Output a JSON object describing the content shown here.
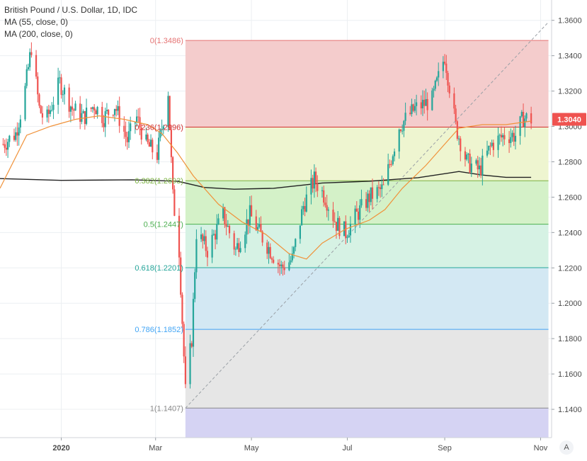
{
  "legend": {
    "title": "British Pound / U.S. Dollar, 1D, IDC",
    "ma55": "MA (55, close, 0)",
    "ma200": "MA (200, close, 0)"
  },
  "auto_button": "A",
  "price_label": "1.3040",
  "chart_data": {
    "type": "candlestick",
    "symbol": "British Pound / U.S. Dollar",
    "interval": "1D",
    "source": "IDC",
    "ylim": [
      1.124,
      1.3715
    ],
    "y_ticks": [
      "1.3600",
      "1.3400",
      "1.3200",
      "1.3000",
      "1.2800",
      "1.2600",
      "1.2400",
      "1.2200",
      "1.2000",
      "1.1800",
      "1.1600",
      "1.1400"
    ],
    "x_ticks": [
      {
        "label": "2020",
        "date": "2020-01-01"
      },
      {
        "label": "Mar",
        "date": "2020-03-01"
      },
      {
        "label": "May",
        "date": "2020-05-01"
      },
      {
        "label": "Jul",
        "date": "2020-07-01"
      },
      {
        "label": "Sep",
        "date": "2020-09-01"
      },
      {
        "label": "Nov",
        "date": "2020-11-01"
      }
    ],
    "x_range": [
      "2019-11-23",
      "2020-11-08"
    ],
    "last_close": 1.304,
    "fibonacci": {
      "start_date": "2020-03-20",
      "end_date": "2020-11-06",
      "levels": [
        {
          "ratio": "0",
          "price": 1.3486,
          "label": "0(1.3486)",
          "color": "#e57373",
          "fill": "#f4cccc"
        },
        {
          "ratio": "0.236",
          "price": 1.2996,
          "label": "0.236(1.2996)",
          "color": "#d32f2f",
          "fill": "#eef5d0"
        },
        {
          "ratio": "0.382",
          "price": 1.2693,
          "label": "0.382(1.2693)",
          "color": "#7cb342",
          "fill": "#d4f1c8"
        },
        {
          "ratio": "0.5",
          "price": 1.2447,
          "label": "0.5(1.2447)",
          "color": "#4caf50",
          "fill": "#d6f2e4"
        },
        {
          "ratio": "0.618",
          "price": 1.2201,
          "label": "0.618(1.2201)",
          "color": "#26a69a",
          "fill": "#d3e8f3"
        },
        {
          "ratio": "0.786",
          "price": 1.1852,
          "label": "0.786(1.1852)",
          "color": "#42a5f5",
          "fill": "#e6e6e6"
        },
        {
          "ratio": "1",
          "price": 1.1407,
          "label": "1(1.1407)",
          "color": "#8a8a8a",
          "fill": "#d5d3f3"
        }
      ]
    },
    "trend_line": {
      "from": {
        "date": "2020-03-20",
        "price": 1.1407
      },
      "to": {
        "date": "2020-11-06",
        "price": 1.359
      }
    },
    "ma55": [
      [
        "2019-11-23",
        1.265
      ],
      [
        "2019-12-10",
        1.295
      ],
      [
        "2019-12-25",
        1.3
      ],
      [
        "2020-01-10",
        1.304
      ],
      [
        "2020-01-25",
        1.306
      ],
      [
        "2020-02-10",
        1.304
      ],
      [
        "2020-02-25",
        1.301
      ],
      [
        "2020-03-05",
        1.296
      ],
      [
        "2020-03-15",
        1.285
      ],
      [
        "2020-03-25",
        1.272
      ],
      [
        "2020-04-10",
        1.256
      ],
      [
        "2020-04-25",
        1.246
      ],
      [
        "2020-05-10",
        1.239
      ],
      [
        "2020-05-25",
        1.228
      ],
      [
        "2020-06-05",
        1.225
      ],
      [
        "2020-06-15",
        1.234
      ],
      [
        "2020-06-30",
        1.242
      ],
      [
        "2020-07-15",
        1.247
      ],
      [
        "2020-07-25",
        1.253
      ],
      [
        "2020-08-05",
        1.265
      ],
      [
        "2020-08-20",
        1.278
      ],
      [
        "2020-09-01",
        1.29
      ],
      [
        "2020-09-10",
        1.299
      ],
      [
        "2020-09-25",
        1.301
      ],
      [
        "2020-10-10",
        1.301
      ],
      [
        "2020-10-26",
        1.303
      ]
    ],
    "ma200": [
      [
        "2019-11-23",
        1.2705
      ],
      [
        "2020-01-01",
        1.2695
      ],
      [
        "2020-02-15",
        1.2698
      ],
      [
        "2020-03-15",
        1.269
      ],
      [
        "2020-04-01",
        1.2655
      ],
      [
        "2020-04-20",
        1.2645
      ],
      [
        "2020-05-15",
        1.265
      ],
      [
        "2020-06-15",
        1.268
      ],
      [
        "2020-07-15",
        1.269
      ],
      [
        "2020-08-15",
        1.271
      ],
      [
        "2020-09-10",
        1.2745
      ],
      [
        "2020-09-25",
        1.2725
      ],
      [
        "2020-10-10",
        1.2712
      ],
      [
        "2020-10-26",
        1.2712
      ]
    ],
    "candle_path": [
      [
        "2019-11-25",
        1.29
      ],
      [
        "2019-12-03",
        1.296
      ],
      [
        "2019-12-08",
        1.315
      ],
      [
        "2019-12-13",
        1.345
      ],
      [
        "2019-12-18",
        1.31
      ],
      [
        "2019-12-22",
        1.302
      ],
      [
        "2019-12-31",
        1.325
      ],
      [
        "2020-01-08",
        1.31
      ],
      [
        "2020-01-15",
        1.305
      ],
      [
        "2020-01-22",
        1.312
      ],
      [
        "2020-01-28",
        1.305
      ],
      [
        "2020-02-04",
        1.312
      ],
      [
        "2020-02-12",
        1.292
      ],
      [
        "2020-02-18",
        1.305
      ],
      [
        "2020-02-24",
        1.29
      ],
      [
        "2020-03-02",
        1.284
      ],
      [
        "2020-03-09",
        1.32
      ],
      [
        "2020-03-12",
        1.26
      ],
      [
        "2020-03-16",
        1.23
      ],
      [
        "2020-03-20",
        1.15
      ],
      [
        "2020-03-24",
        1.18
      ],
      [
        "2020-03-27",
        1.24
      ],
      [
        "2020-04-03",
        1.23
      ],
      [
        "2020-04-13",
        1.25
      ],
      [
        "2020-04-21",
        1.23
      ],
      [
        "2020-04-30",
        1.25
      ],
      [
        "2020-05-06",
        1.24
      ],
      [
        "2020-05-13",
        1.23
      ],
      [
        "2020-05-20",
        1.22
      ],
      [
        "2020-05-27",
        1.225
      ],
      [
        "2020-06-03",
        1.255
      ],
      [
        "2020-06-10",
        1.27
      ],
      [
        "2020-06-17",
        1.26
      ],
      [
        "2020-06-24",
        1.245
      ],
      [
        "2020-06-30",
        1.24
      ],
      [
        "2020-07-07",
        1.25
      ],
      [
        "2020-07-15",
        1.26
      ],
      [
        "2020-07-24",
        1.265
      ],
      [
        "2020-08-03",
        1.3
      ],
      [
        "2020-08-13",
        1.31
      ],
      [
        "2020-08-24",
        1.315
      ],
      [
        "2020-09-01",
        1.34
      ],
      [
        "2020-09-08",
        1.3
      ],
      [
        "2020-09-15",
        1.28
      ],
      [
        "2020-09-23",
        1.275
      ],
      [
        "2020-10-01",
        1.29
      ],
      [
        "2020-10-09",
        1.295
      ],
      [
        "2020-10-16",
        1.295
      ],
      [
        "2020-10-21",
        1.305
      ],
      [
        "2020-10-26",
        1.304
      ]
    ]
  }
}
